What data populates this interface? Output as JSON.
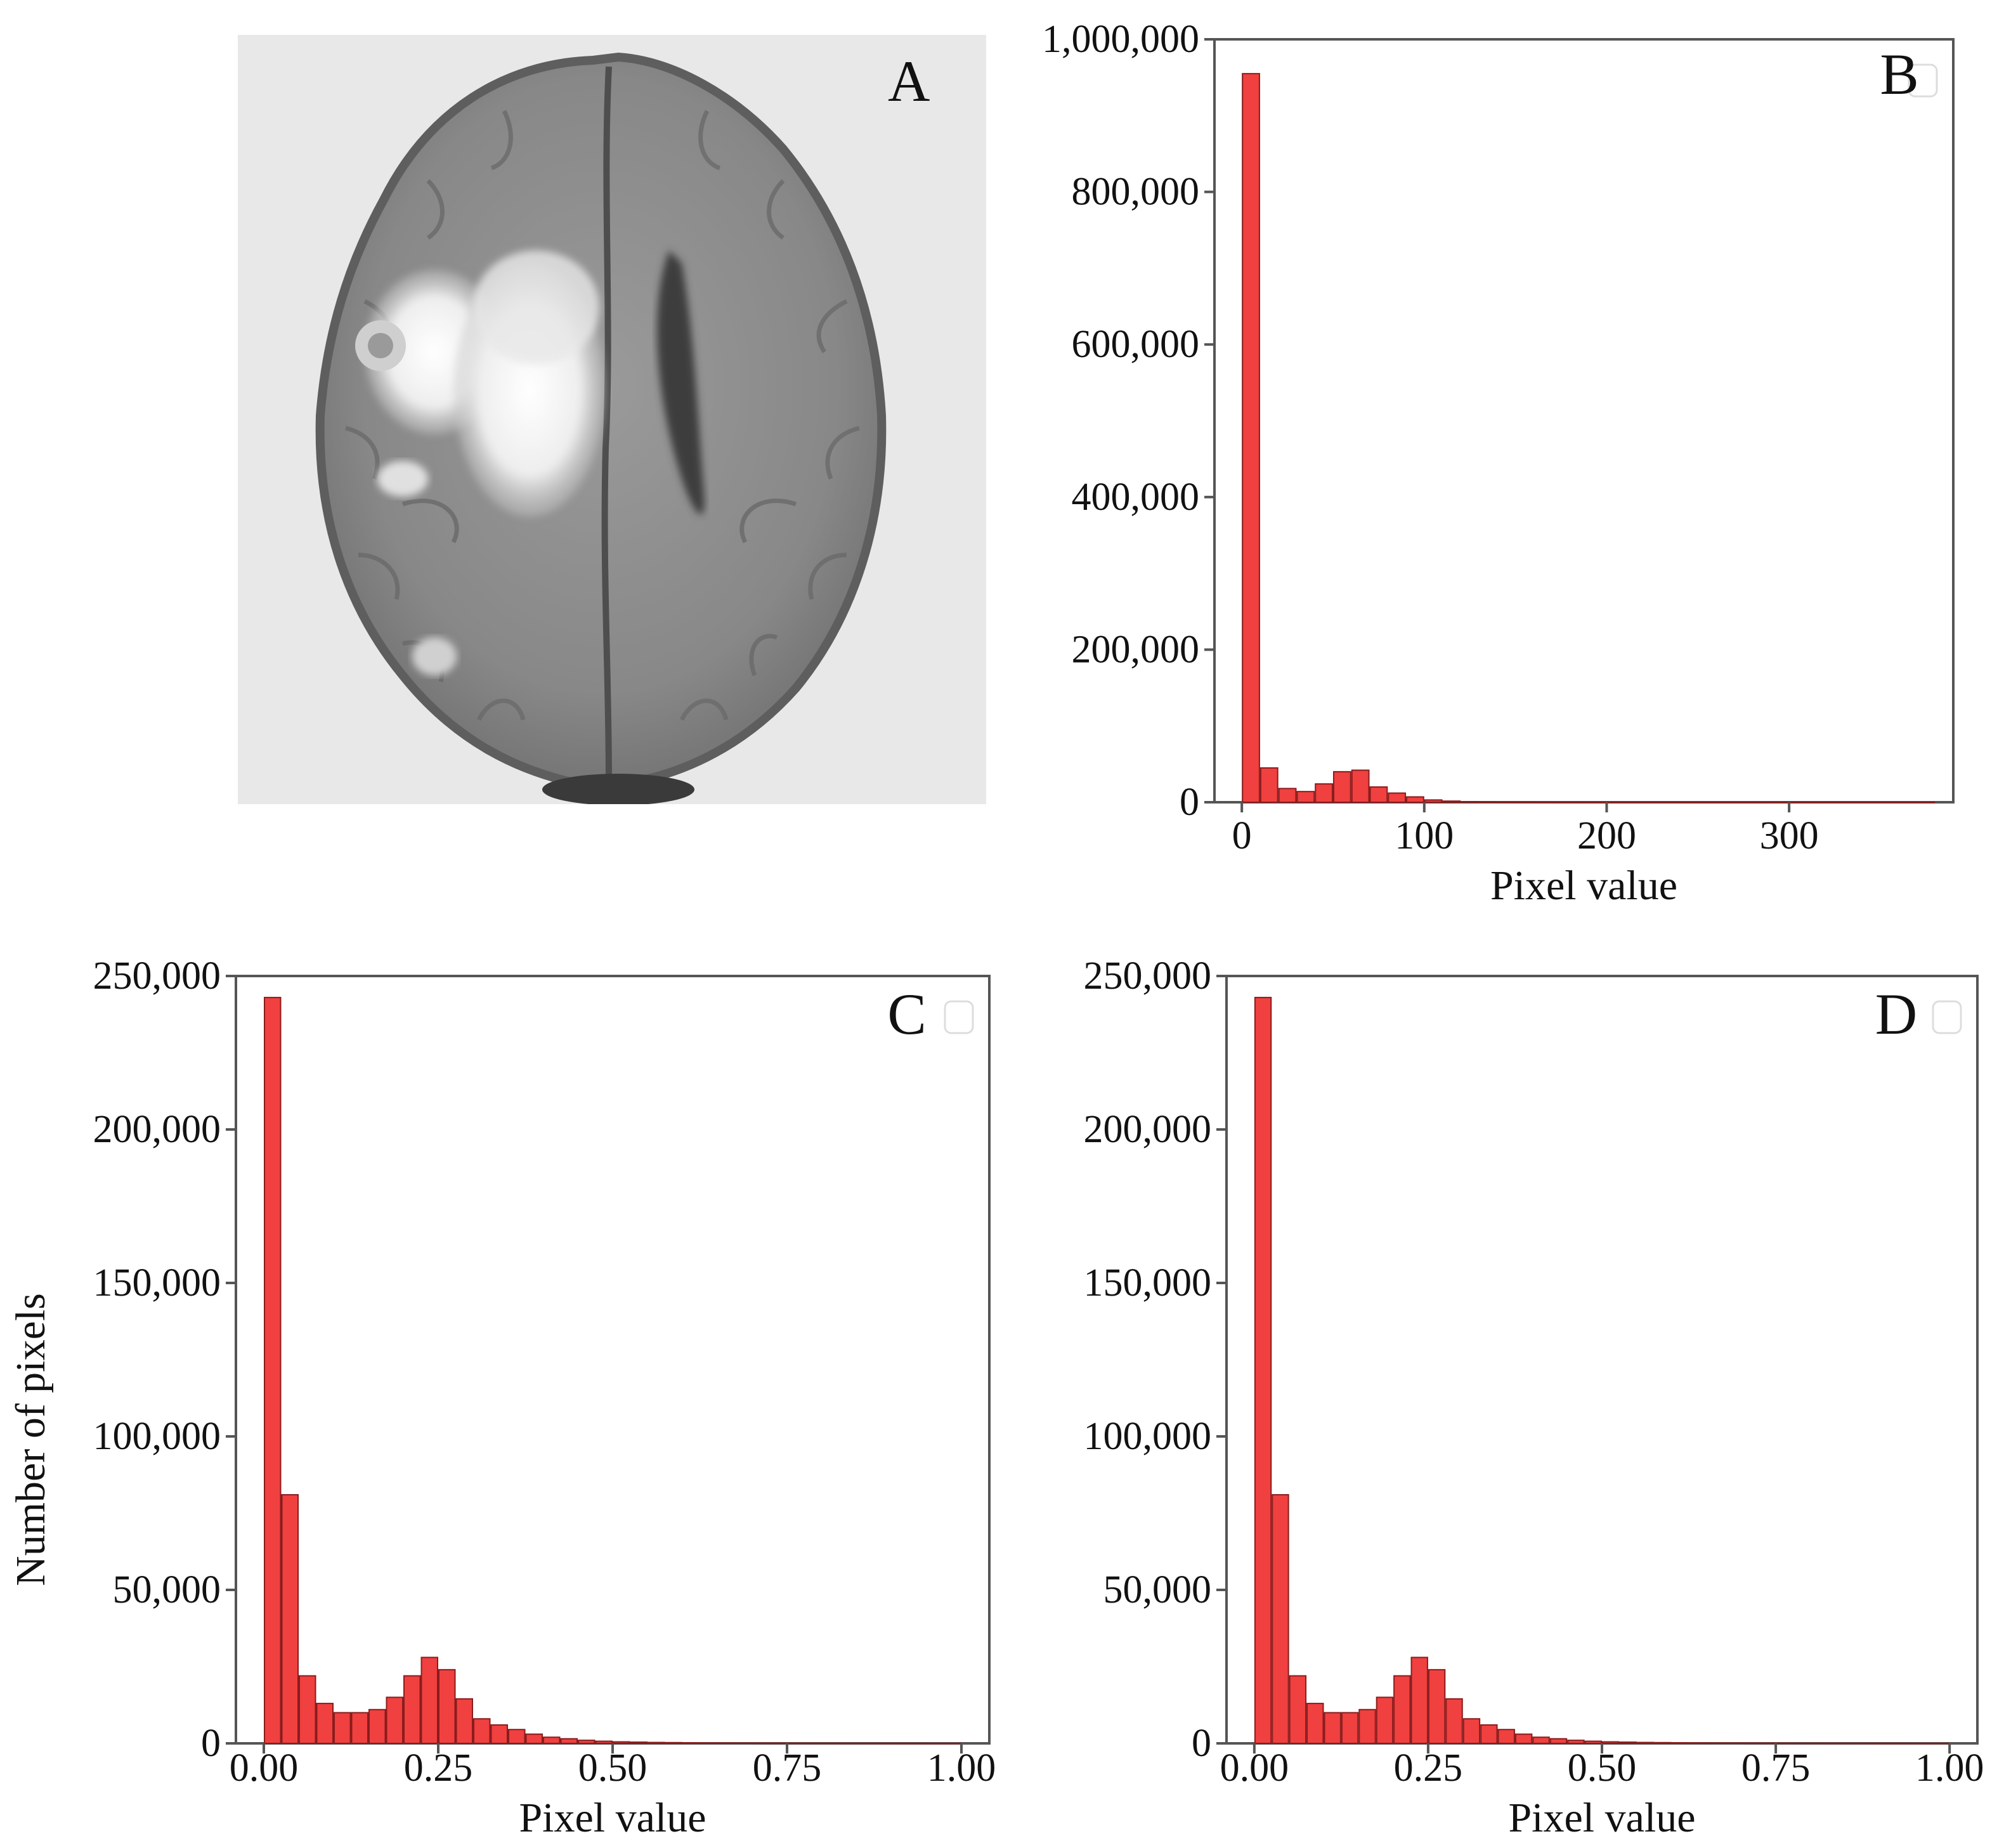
{
  "colors": {
    "bar_fill": "#f04040",
    "bar_stroke": "#8a1c1c",
    "axis": "#555555",
    "mri_background": "#e8e8e8"
  },
  "panels": {
    "a": {
      "letter": "A"
    }
  },
  "chart_data": [
    {
      "panel": "B",
      "type": "bar",
      "xlabel": "Pixel value",
      "ylabel": "",
      "xlim": [
        -15,
        390
      ],
      "ylim": [
        0,
        1000000
      ],
      "x_ticks": [
        0,
        100,
        200,
        300
      ],
      "x_tick_labels": [
        "0",
        "100",
        "200",
        "300"
      ],
      "y_ticks": [
        0,
        200000,
        400000,
        600000,
        800000,
        1000000
      ],
      "y_tick_labels": [
        "0",
        "200,000",
        "400,000",
        "600,000",
        "800,000",
        "1,000,000"
      ],
      "bin_width": 10,
      "x": [
        0,
        10,
        20,
        30,
        40,
        50,
        60,
        70,
        80,
        90,
        100,
        110,
        120,
        130,
        140,
        150,
        160,
        170,
        180,
        190,
        200,
        210,
        220,
        230,
        240,
        250,
        260,
        270,
        280,
        290,
        300,
        310,
        320,
        330,
        340,
        350,
        360,
        370
      ],
      "values": [
        955000,
        45000,
        18000,
        14000,
        24000,
        40000,
        42000,
        20000,
        12000,
        7000,
        3000,
        1500,
        800,
        500,
        300,
        200,
        150,
        100,
        80,
        60,
        50,
        40,
        30,
        25,
        20,
        15,
        10,
        10,
        8,
        5,
        5,
        4,
        3,
        2,
        2,
        1,
        1,
        1
      ],
      "legend": "top-right"
    },
    {
      "panel": "C",
      "type": "bar",
      "xlabel": "Pixel value",
      "ylabel": "Number of pixels",
      "xlim": [
        -0.04,
        1.04
      ],
      "ylim": [
        0,
        250000
      ],
      "x_ticks": [
        0,
        0.25,
        0.5,
        0.75,
        1.0
      ],
      "x_tick_labels": [
        "0.00",
        "0.25",
        "0.50",
        "0.75",
        "1.00"
      ],
      "y_ticks": [
        0,
        50000,
        100000,
        150000,
        200000,
        250000
      ],
      "y_tick_labels": [
        "0",
        "50,000",
        "100,000",
        "150,000",
        "200,000",
        "250,000"
      ],
      "bin_width": 0.025,
      "x": [
        0.0,
        0.025,
        0.05,
        0.075,
        0.1,
        0.125,
        0.15,
        0.175,
        0.2,
        0.225,
        0.25,
        0.275,
        0.3,
        0.325,
        0.35,
        0.375,
        0.4,
        0.425,
        0.45,
        0.475,
        0.5,
        0.525,
        0.55,
        0.575,
        0.6,
        0.625,
        0.65,
        0.675,
        0.7,
        0.725,
        0.75,
        0.775,
        0.8,
        0.825,
        0.85,
        0.875,
        0.9,
        0.925,
        0.95,
        0.975
      ],
      "values": [
        243000,
        81000,
        22000,
        13000,
        10000,
        10000,
        11000,
        15000,
        22000,
        28000,
        24000,
        14500,
        8000,
        6000,
        4500,
        3000,
        2000,
        1500,
        1000,
        700,
        500,
        400,
        300,
        250,
        200,
        150,
        120,
        100,
        80,
        60,
        50,
        40,
        30,
        25,
        20,
        15,
        10,
        8,
        6,
        4
      ],
      "legend": "top-right"
    },
    {
      "panel": "D",
      "type": "bar",
      "xlabel": "Pixel value",
      "ylabel": "",
      "xlim": [
        -0.04,
        1.04
      ],
      "ylim": [
        0,
        250000
      ],
      "x_ticks": [
        0,
        0.25,
        0.5,
        0.75,
        1.0
      ],
      "x_tick_labels": [
        "0.00",
        "0.25",
        "0.50",
        "0.75",
        "1.00"
      ],
      "y_ticks": [
        0,
        50000,
        100000,
        150000,
        200000,
        250000
      ],
      "y_tick_labels": [
        "0",
        "50,000",
        "100,000",
        "150,000",
        "200,000",
        "250,000"
      ],
      "bin_width": 0.025,
      "x": [
        0.0,
        0.025,
        0.05,
        0.075,
        0.1,
        0.125,
        0.15,
        0.175,
        0.2,
        0.225,
        0.25,
        0.275,
        0.3,
        0.325,
        0.35,
        0.375,
        0.4,
        0.425,
        0.45,
        0.475,
        0.5,
        0.525,
        0.55,
        0.575,
        0.6,
        0.625,
        0.65,
        0.675,
        0.7,
        0.725,
        0.75,
        0.775,
        0.8,
        0.825,
        0.85,
        0.875,
        0.9,
        0.925,
        0.95,
        0.975
      ],
      "values": [
        243000,
        81000,
        22000,
        13000,
        10000,
        10000,
        11000,
        15000,
        22000,
        28000,
        24000,
        14500,
        8000,
        6000,
        4500,
        3000,
        2000,
        1500,
        1000,
        700,
        500,
        400,
        300,
        250,
        200,
        150,
        120,
        100,
        80,
        60,
        50,
        40,
        30,
        25,
        20,
        15,
        10,
        8,
        6,
        4
      ],
      "legend": "top-right"
    }
  ]
}
